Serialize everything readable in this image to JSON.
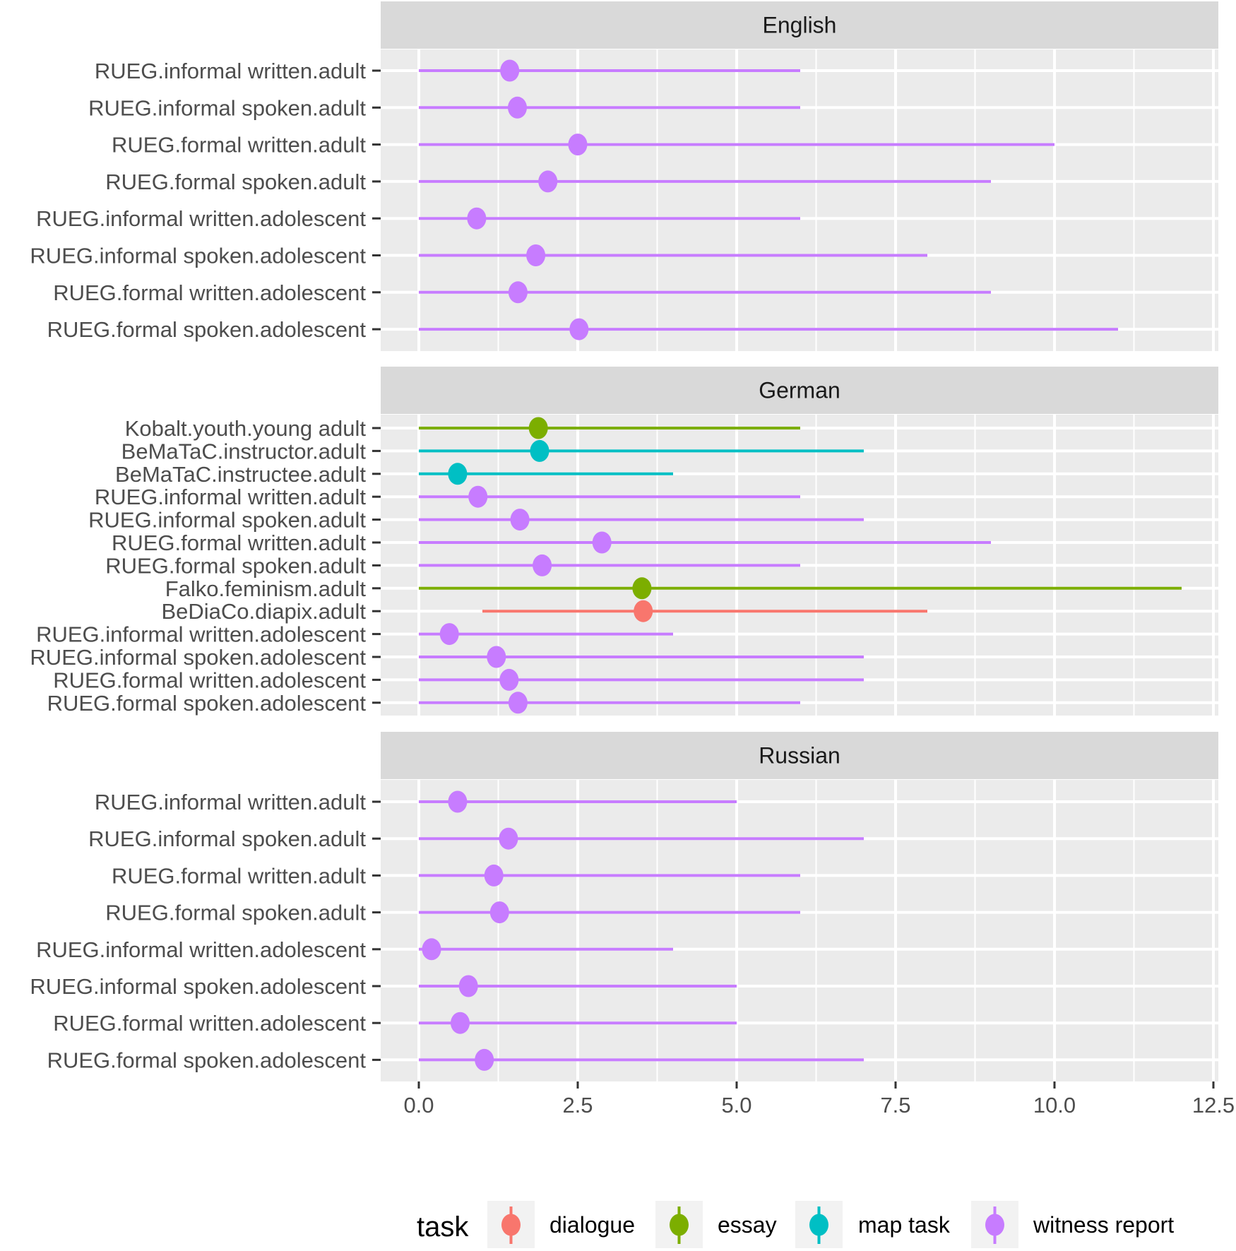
{
  "chart_data": {
    "type": "dot-range",
    "title": "",
    "xlabel": "",
    "ylabel": "",
    "xlim": [
      -0.3,
      12.6
    ],
    "x_ticks": [
      0.0,
      2.5,
      5.0,
      7.5,
      10.0,
      12.5
    ],
    "x_tick_labels": [
      "0.0",
      "2.5",
      "5.0",
      "7.5",
      "10.0",
      "12.5"
    ],
    "grid": true,
    "legend": {
      "title": "task",
      "placement": "bottom",
      "entries": [
        {
          "label": "dialogue",
          "color": "#F8766D"
        },
        {
          "label": "essay",
          "color": "#7CAE00"
        },
        {
          "label": "map task",
          "color": "#00BFC4"
        },
        {
          "label": "witness report",
          "color": "#C77CFF"
        }
      ]
    },
    "facets": [
      {
        "name": "English",
        "rows": [
          {
            "label": "RUEG.informal written.adult",
            "task": "witness report",
            "point": 1.43,
            "min": 0,
            "max": 6
          },
          {
            "label": "RUEG.informal spoken.adult",
            "task": "witness report",
            "point": 1.55,
            "min": 0,
            "max": 6
          },
          {
            "label": "RUEG.formal written.adult",
            "task": "witness report",
            "point": 2.5,
            "min": 0,
            "max": 10
          },
          {
            "label": "RUEG.formal spoken.adult",
            "task": "witness report",
            "point": 2.03,
            "min": 0,
            "max": 9
          },
          {
            "label": "RUEG.informal written.adolescent",
            "task": "witness report",
            "point": 0.91,
            "min": 0,
            "max": 6
          },
          {
            "label": "RUEG.informal spoken.adolescent",
            "task": "witness report",
            "point": 1.84,
            "min": 0,
            "max": 8
          },
          {
            "label": "RUEG.formal written.adolescent",
            "task": "witness report",
            "point": 1.56,
            "min": 0,
            "max": 9
          },
          {
            "label": "RUEG.formal spoken.adolescent",
            "task": "witness report",
            "point": 2.52,
            "min": 0,
            "max": 11
          }
        ]
      },
      {
        "name": "German",
        "rows": [
          {
            "label": "Kobalt.youth.young adult",
            "task": "essay",
            "point": 1.88,
            "min": 0,
            "max": 6
          },
          {
            "label": "BeMaTaC.instructor.adult",
            "task": "map task",
            "point": 1.9,
            "min": 0,
            "max": 7
          },
          {
            "label": "BeMaTaC.instructee.adult",
            "task": "map task",
            "point": 0.61,
            "min": 0,
            "max": 4
          },
          {
            "label": "RUEG.informal written.adult",
            "task": "witness report",
            "point": 0.93,
            "min": 0,
            "max": 6
          },
          {
            "label": "RUEG.informal spoken.adult",
            "task": "witness report",
            "point": 1.59,
            "min": 0,
            "max": 7
          },
          {
            "label": "RUEG.formal written.adult",
            "task": "witness report",
            "point": 2.88,
            "min": 0,
            "max": 9
          },
          {
            "label": "RUEG.formal spoken.adult",
            "task": "witness report",
            "point": 1.94,
            "min": 0,
            "max": 6
          },
          {
            "label": "Falko.feminism.adult",
            "task": "essay",
            "point": 3.51,
            "min": 0,
            "max": 12
          },
          {
            "label": "BeDiaCo.diapix.adult",
            "task": "dialogue",
            "point": 3.53,
            "min": 1,
            "max": 8
          },
          {
            "label": "RUEG.informal written.adolescent",
            "task": "witness report",
            "point": 0.48,
            "min": 0,
            "max": 4
          },
          {
            "label": "RUEG.informal spoken.adolescent",
            "task": "witness report",
            "point": 1.22,
            "min": 0,
            "max": 7
          },
          {
            "label": "RUEG.formal written.adolescent",
            "task": "witness report",
            "point": 1.42,
            "min": 0,
            "max": 7
          },
          {
            "label": "RUEG.formal spoken.adolescent",
            "task": "witness report",
            "point": 1.56,
            "min": 0,
            "max": 6
          }
        ]
      },
      {
        "name": "Russian",
        "rows": [
          {
            "label": "RUEG.informal written.adult",
            "task": "witness report",
            "point": 0.61,
            "min": 0,
            "max": 5
          },
          {
            "label": "RUEG.informal spoken.adult",
            "task": "witness report",
            "point": 1.41,
            "min": 0,
            "max": 7
          },
          {
            "label": "RUEG.formal written.adult",
            "task": "witness report",
            "point": 1.18,
            "min": 0,
            "max": 6
          },
          {
            "label": "RUEG.formal spoken.adult",
            "task": "witness report",
            "point": 1.27,
            "min": 0,
            "max": 6
          },
          {
            "label": "RUEG.informal written.adolescent",
            "task": "witness report",
            "point": 0.2,
            "min": 0,
            "max": 4
          },
          {
            "label": "RUEG.informal spoken.adolescent",
            "task": "witness report",
            "point": 0.78,
            "min": 0,
            "max": 5
          },
          {
            "label": "RUEG.formal written.adolescent",
            "task": "witness report",
            "point": 0.65,
            "min": 0,
            "max": 5
          },
          {
            "label": "RUEG.formal spoken.adolescent",
            "task": "witness report",
            "point": 1.03,
            "min": 0,
            "max": 7
          }
        ]
      }
    ]
  }
}
